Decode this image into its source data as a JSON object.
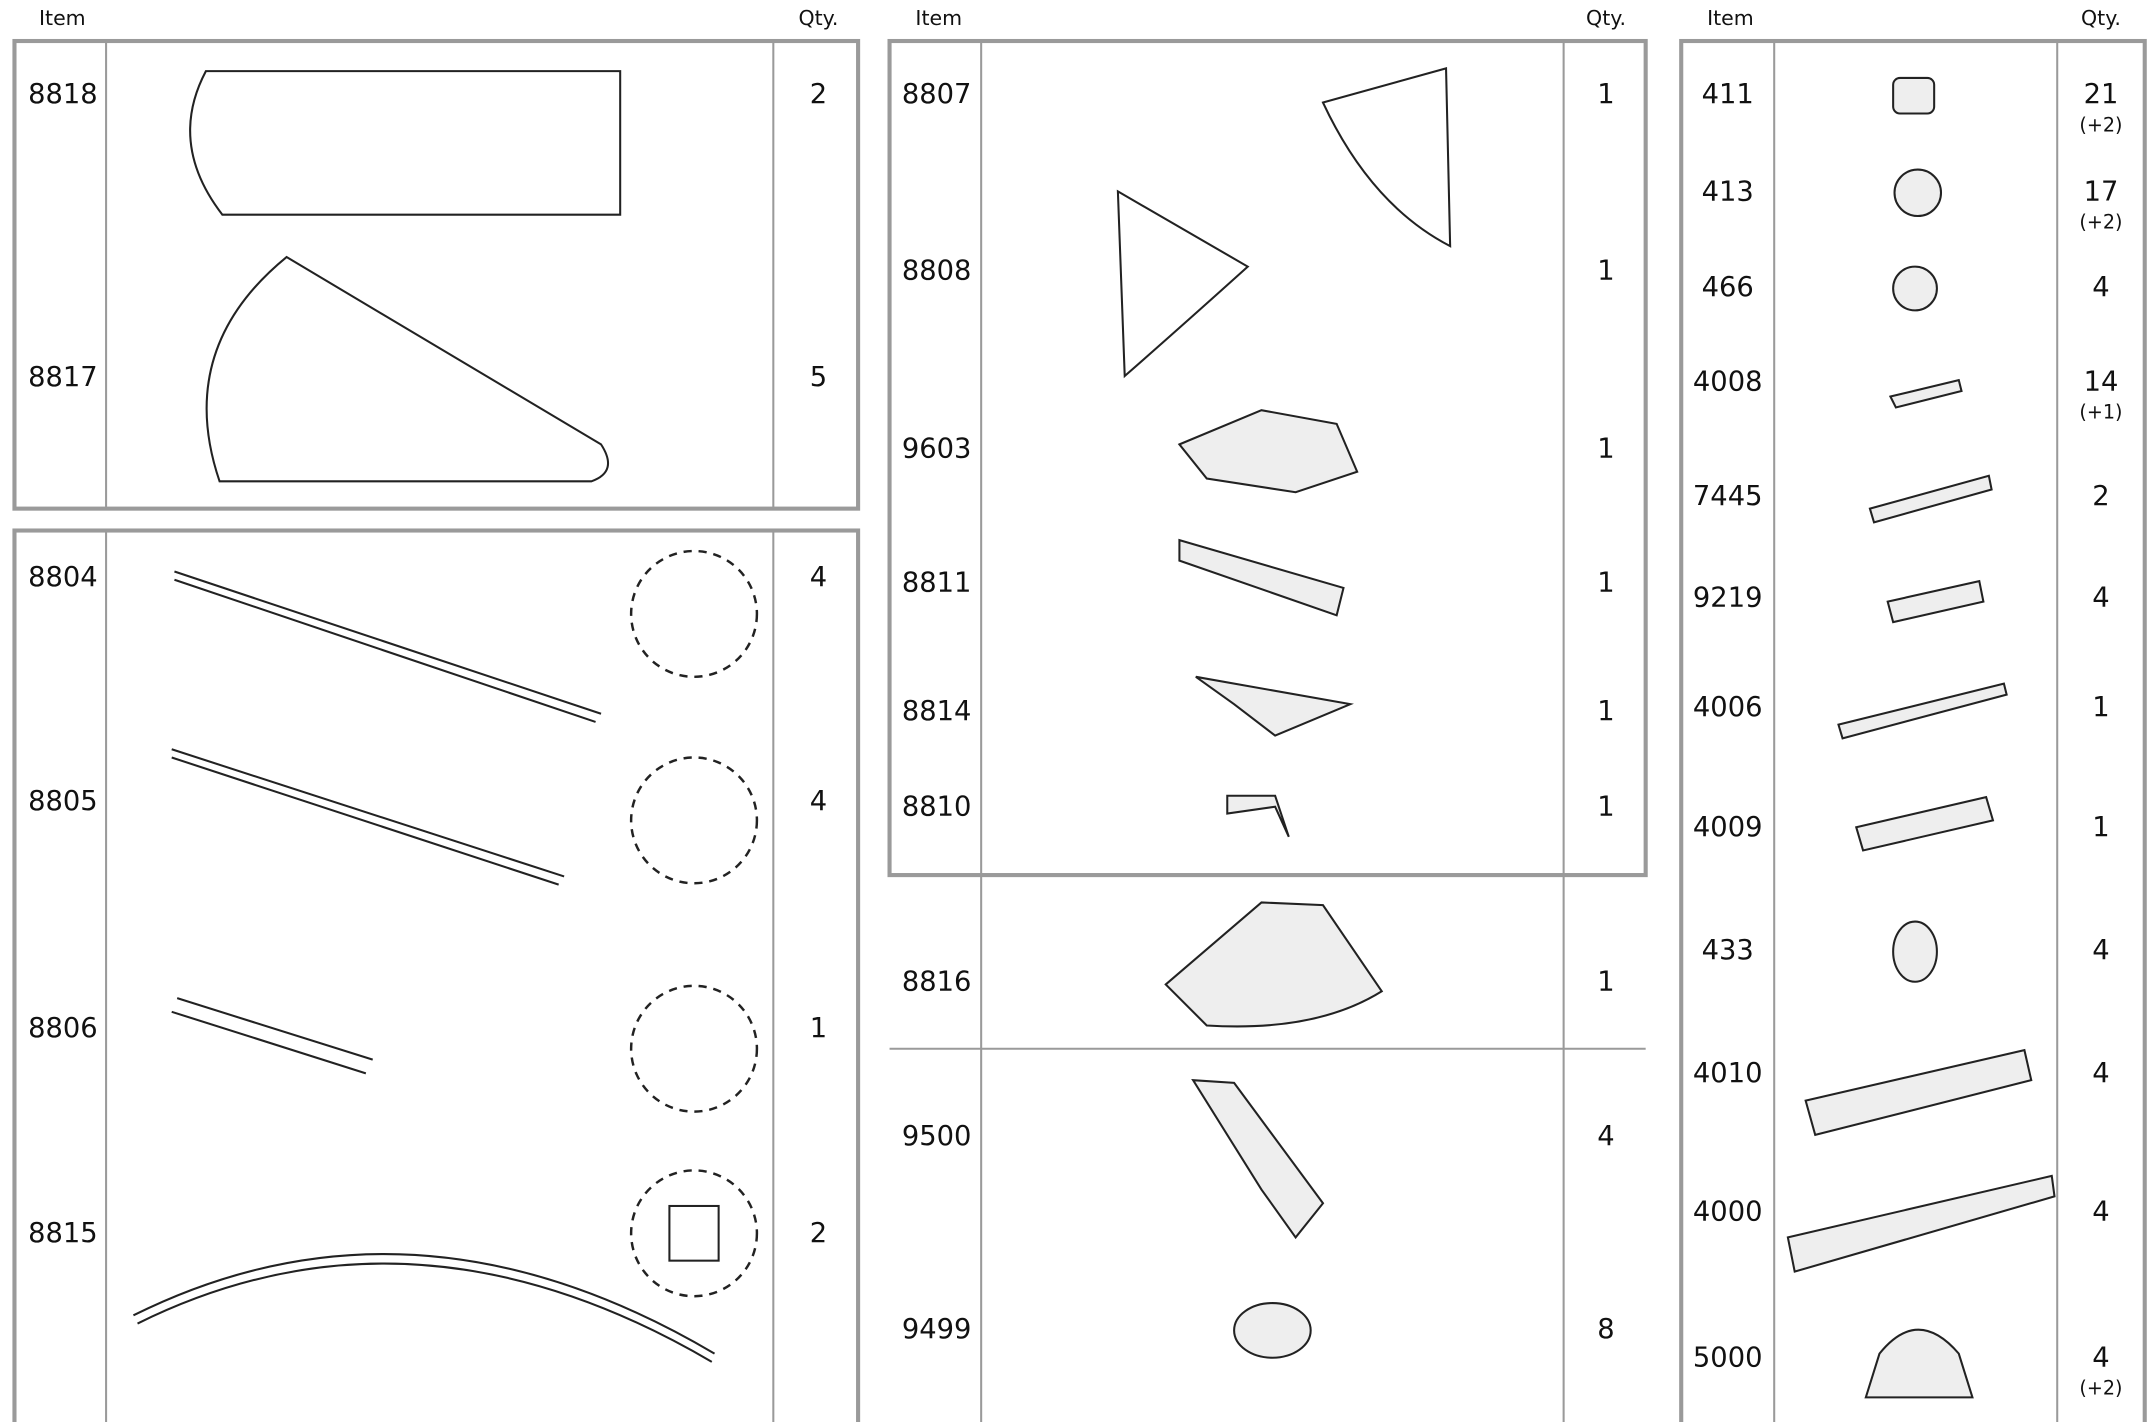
{
  "columns": [
    {
      "header": {
        "item": "Item",
        "qty": "Qty."
      },
      "sections": [
        {
          "rows": [
            {
              "item": "8818",
              "qty": "2"
            },
            {
              "item": "8817",
              "qty": "5"
            }
          ]
        },
        {
          "rows": [
            {
              "item": "8804",
              "qty": "4"
            },
            {
              "item": "8805",
              "qty": "4"
            },
            {
              "item": "8806",
              "qty": "1"
            },
            {
              "item": "8815",
              "qty": "2"
            }
          ]
        }
      ]
    },
    {
      "header": {
        "item": "Item",
        "qty": "Qty."
      },
      "sections": [
        {
          "rows": [
            {
              "item": "8807",
              "qty": "1"
            },
            {
              "item": "8808",
              "qty": "1"
            },
            {
              "item": "9603",
              "qty": "1"
            },
            {
              "item": "8811",
              "qty": "1"
            },
            {
              "item": "8814",
              "qty": "1"
            },
            {
              "item": "8810",
              "qty": "1"
            }
          ]
        },
        {
          "rows": [
            {
              "item": "8816",
              "qty": "1"
            }
          ]
        },
        {
          "rows": [
            {
              "item": "9500",
              "qty": "4"
            },
            {
              "item": "9499",
              "qty": "8"
            }
          ]
        }
      ]
    },
    {
      "header": {
        "item": "Item",
        "qty": "Qty."
      },
      "sections": [
        {
          "rows": [
            {
              "item": "411",
              "qty": "21",
              "extra": "(+2)"
            },
            {
              "item": "413",
              "qty": "17",
              "extra": "(+2)"
            },
            {
              "item": "466",
              "qty": "4"
            },
            {
              "item": "4008",
              "qty": "14",
              "extra": "(+1)"
            },
            {
              "item": "7445",
              "qty": "2"
            },
            {
              "item": "9219",
              "qty": "4"
            },
            {
              "item": "4006",
              "qty": "1"
            },
            {
              "item": "4009",
              "qty": "1"
            },
            {
              "item": "433",
              "qty": "4"
            },
            {
              "item": "4010",
              "qty": "4"
            },
            {
              "item": "4000",
              "qty": "4"
            },
            {
              "item": "5000",
              "qty": "4",
              "extra": "(+2)"
            }
          ]
        }
      ]
    }
  ]
}
